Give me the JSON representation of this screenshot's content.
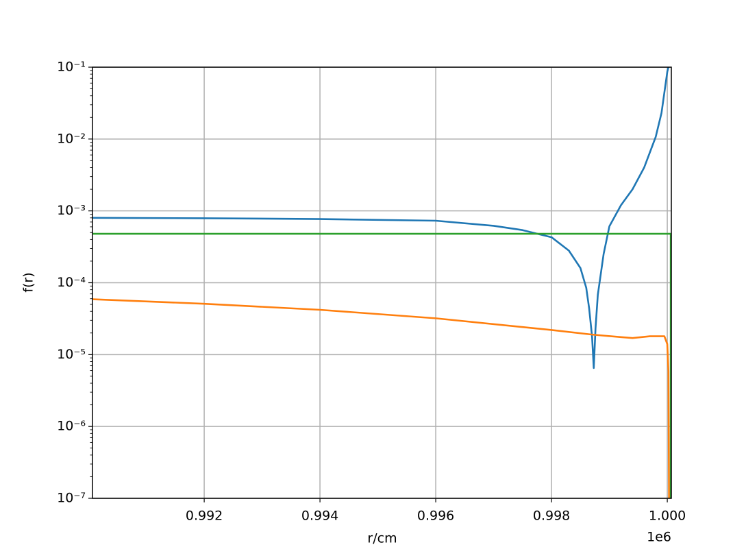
{
  "chart_data": {
    "type": "line",
    "xlabel": "r/cm",
    "ylabel": "f(r)",
    "x_offset_label": "1e6",
    "xlim": [
      0.99007,
      1.00007
    ],
    "xticks": [
      0.992,
      0.994,
      0.996,
      0.998,
      {
        "value": 1.0,
        "label": "1.000"
      }
    ],
    "ylim": [
      1e-07,
      0.1
    ],
    "yscale": "log",
    "yticks": [
      {
        "value": 1e-07,
        "label": "10⁻⁷"
      },
      {
        "value": 1e-06,
        "label": "10⁻⁶"
      },
      {
        "value": 1e-05,
        "label": "10⁻⁵"
      },
      {
        "value": 0.0001,
        "label": "10⁻⁴"
      },
      {
        "value": 0.001,
        "label": "10⁻³"
      },
      {
        "value": 0.01,
        "label": "10⁻²"
      },
      {
        "value": 0.1,
        "label": "10⁻¹"
      }
    ],
    "grid": true,
    "series": [
      {
        "color": "#1f77b4",
        "x": [
          0.99007,
          0.992,
          0.994,
          0.996,
          0.997,
          0.9975,
          0.998,
          0.9983,
          0.9985,
          0.9986,
          0.99865,
          0.9987,
          0.99873,
          0.99876,
          0.9988,
          0.9989,
          0.999,
          0.9992,
          0.9994,
          0.9996,
          0.9998,
          0.9999,
          1.0,
          1.00002
        ],
        "values": [
          0.0008,
          0.00079,
          0.00077,
          0.00073,
          0.00062,
          0.00054,
          0.00043,
          0.00028,
          0.00016,
          8.5e-05,
          4.4e-05,
          1.8e-05,
          6.5e-06,
          2.3e-05,
          6.8e-05,
          0.00025,
          0.00061,
          0.0012,
          0.002,
          0.004,
          0.0107,
          0.023,
          0.086,
          0.1
        ]
      },
      {
        "color": "#ff7f0e",
        "x": [
          0.99007,
          0.992,
          0.994,
          0.996,
          0.998,
          0.9987,
          0.9992,
          0.9994,
          0.9997,
          0.99995,
          1.0,
          1.00002,
          1.00003
        ],
        "values": [
          5.9e-05,
          5.1e-05,
          4.2e-05,
          3.2e-05,
          2.2e-05,
          1.9e-05,
          1.75e-05,
          1.7e-05,
          1.8e-05,
          1.8e-05,
          1.4e-05,
          5.9e-06,
          1e-07
        ]
      },
      {
        "color": "#2ca02c",
        "x": [
          0.99007,
          1.00006,
          1.00006
        ],
        "values": [
          0.00048,
          0.00048,
          1e-07
        ]
      }
    ]
  }
}
